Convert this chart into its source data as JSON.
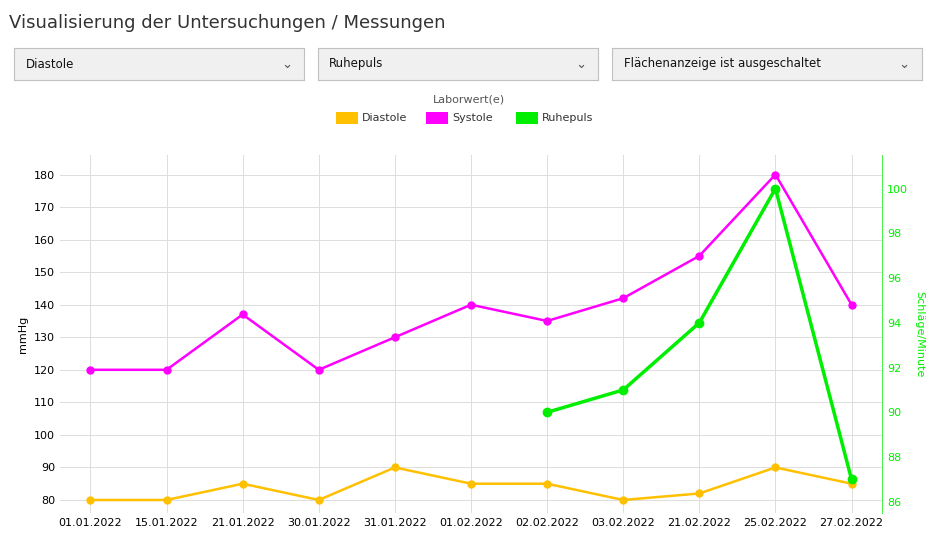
{
  "title": "Visualisierung der Untersuchungen / Messungen",
  "legend_title": "Laborwert(e)",
  "dropdown1": "Diastole",
  "dropdown2": "Ruhepuls",
  "dropdown3": "Flächenanzeige ist ausgeschaltet",
  "dates": [
    "01.01.2022",
    "15.01.2022",
    "21.01.2022",
    "30.01.2022",
    "31.01.2022",
    "01.02.2022",
    "02.02.2022",
    "03.02.2022",
    "21.02.2022",
    "25.02.2022",
    "27.02.2022"
  ],
  "diastole": [
    80,
    80,
    85,
    80,
    90,
    85,
    85,
    80,
    82,
    90,
    85
  ],
  "systole": [
    120,
    120,
    137,
    120,
    130,
    140,
    135,
    142,
    155,
    180,
    140
  ],
  "ruhepuls": [
    null,
    null,
    null,
    null,
    null,
    null,
    90,
    91,
    94,
    100,
    87
  ],
  "diastole_color": "#FFC000",
  "systole_color": "#FF00FF",
  "ruhepuls_color": "#00EE00",
  "ylabel_left": "mmHg",
  "ylabel_right": "Schläge/Minute",
  "ylim_left": [
    76,
    186
  ],
  "ylim_right": [
    85.5,
    101.5
  ],
  "yticks_left": [
    80,
    90,
    100,
    110,
    120,
    130,
    140,
    150,
    160,
    170,
    180
  ],
  "yticks_right": [
    86,
    88,
    90,
    92,
    94,
    96,
    98,
    100
  ],
  "background_color": "#ffffff",
  "grid_color": "#dddddd",
  "title_fontsize": 13,
  "axis_label_fontsize": 8,
  "tick_fontsize": 8,
  "legend_fontsize": 8,
  "title_color": "#333333"
}
